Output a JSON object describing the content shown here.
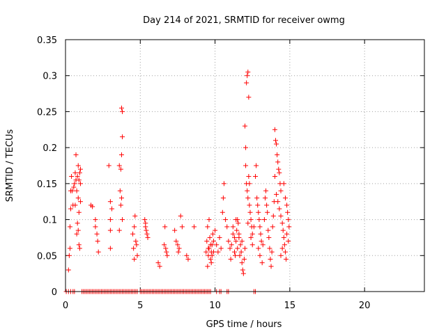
{
  "chart_data": {
    "type": "scatter",
    "title": "Day 214 of 2021, SRMTID for receiver owmg",
    "xlabel": "GPS time / hours",
    "ylabel": "SRMTID / TECUs",
    "xlim": [
      0,
      24
    ],
    "ylim": [
      0,
      0.35
    ],
    "grid": true,
    "xticks": [
      0,
      5,
      10,
      15,
      20
    ],
    "yticks": [
      0,
      0.05,
      0.1,
      0.15,
      0.2,
      0.25,
      0.3,
      0.35
    ],
    "xtick_labels": [
      "0",
      "5",
      "10",
      "15",
      "20"
    ],
    "ytick_labels": [
      "0",
      "0.05",
      "0.1",
      "0.15",
      "0.2",
      "0.25",
      "0.3",
      "0.35"
    ],
    "marker": "+",
    "color": "#ff0000",
    "series": [
      {
        "name": "SRMTID",
        "points": [
          [
            0.2,
            0.03
          ],
          [
            0.25,
            0.05
          ],
          [
            0.3,
            0.06
          ],
          [
            0.3,
            0.09
          ],
          [
            0.35,
            0.115
          ],
          [
            0.35,
            0.14
          ],
          [
            0.4,
            0.16
          ],
          [
            0.45,
            0.14
          ],
          [
            0.5,
            0.12
          ],
          [
            0.55,
            0.145
          ],
          [
            0.6,
            0.15
          ],
          [
            0.65,
            0.165
          ],
          [
            0.7,
            0.155
          ],
          [
            0.7,
            0.19
          ],
          [
            0.75,
            0.14
          ],
          [
            0.8,
            0.16
          ],
          [
            0.85,
            0.175
          ],
          [
            0.85,
            0.13
          ],
          [
            0.9,
            0.155
          ],
          [
            0.9,
            0.11
          ],
          [
            0.95,
            0.165
          ],
          [
            1.0,
            0.15
          ],
          [
            1.0,
            0.125
          ],
          [
            0.8,
            0.095
          ],
          [
            0.85,
            0.085
          ],
          [
            0.9,
            0.065
          ],
          [
            0.95,
            0.06
          ],
          [
            0.75,
            0.08
          ],
          [
            1.0,
            0.17
          ],
          [
            0.65,
            0.12
          ],
          [
            1.7,
            0.12
          ],
          [
            1.8,
            0.118
          ],
          [
            2.0,
            0.1
          ],
          [
            2.1,
            0.08
          ],
          [
            2.15,
            0.07
          ],
          [
            2.2,
            0.055
          ],
          [
            2.0,
            0.09
          ],
          [
            2.9,
            0.175
          ],
          [
            3.0,
            0.125
          ],
          [
            3.0,
            0.1
          ],
          [
            3.0,
            0.085
          ],
          [
            3.0,
            0.06
          ],
          [
            3.1,
            0.115
          ],
          [
            3.6,
            0.175
          ],
          [
            3.65,
            0.14
          ],
          [
            3.7,
            0.17
          ],
          [
            3.75,
            0.255
          ],
          [
            3.8,
            0.25
          ],
          [
            3.8,
            0.215
          ],
          [
            3.75,
            0.19
          ],
          [
            3.7,
            0.12
          ],
          [
            3.8,
            0.1
          ],
          [
            3.6,
            0.085
          ],
          [
            3.75,
            0.13
          ],
          [
            4.5,
            0.08
          ],
          [
            4.55,
            0.06
          ],
          [
            4.6,
            0.09
          ],
          [
            4.65,
            0.105
          ],
          [
            4.7,
            0.07
          ],
          [
            4.75,
            0.065
          ],
          [
            4.8,
            0.05
          ],
          [
            4.6,
            0.045
          ],
          [
            5.3,
            0.1
          ],
          [
            5.35,
            0.09
          ],
          [
            5.4,
            0.085
          ],
          [
            5.45,
            0.08
          ],
          [
            5.5,
            0.075
          ],
          [
            5.35,
            0.095
          ],
          [
            6.2,
            0.04
          ],
          [
            6.3,
            0.035
          ],
          [
            6.6,
            0.065
          ],
          [
            6.7,
            0.06
          ],
          [
            6.75,
            0.055
          ],
          [
            6.8,
            0.05
          ],
          [
            6.65,
            0.09
          ],
          [
            7.3,
            0.085
          ],
          [
            7.4,
            0.07
          ],
          [
            7.5,
            0.065
          ],
          [
            7.6,
            0.06
          ],
          [
            7.7,
            0.105
          ],
          [
            7.8,
            0.09
          ],
          [
            7.55,
            0.055
          ],
          [
            8.1,
            0.05
          ],
          [
            8.2,
            0.045
          ],
          [
            8.6,
            0.09
          ],
          [
            9.4,
            0.055
          ],
          [
            9.45,
            0.07
          ],
          [
            9.5,
            0.09
          ],
          [
            9.55,
            0.05
          ],
          [
            9.6,
            0.06
          ],
          [
            9.65,
            0.075
          ],
          [
            9.7,
            0.045
          ],
          [
            9.75,
            0.04
          ],
          [
            9.8,
            0.065
          ],
          [
            9.85,
            0.08
          ],
          [
            9.9,
            0.055
          ],
          [
            9.5,
            0.035
          ],
          [
            9.6,
            0.1
          ],
          [
            9.7,
            0.065
          ],
          [
            9.8,
            0.05
          ],
          [
            9.9,
            0.07
          ],
          [
            9.55,
            0.06
          ],
          [
            9.75,
            0.055
          ],
          [
            10.0,
            0.085
          ],
          [
            10.1,
            0.065
          ],
          [
            10.2,
            0.055
          ],
          [
            10.3,
            0.075
          ],
          [
            10.4,
            0.06
          ],
          [
            10.5,
            0.11
          ],
          [
            10.55,
            0.13
          ],
          [
            10.6,
            0.15
          ],
          [
            10.7,
            0.1
          ],
          [
            10.8,
            0.09
          ],
          [
            10.9,
            0.07
          ],
          [
            11.0,
            0.06
          ],
          [
            11.05,
            0.045
          ],
          [
            11.1,
            0.065
          ],
          [
            11.2,
            0.08
          ],
          [
            11.3,
            0.055
          ],
          [
            11.35,
            0.05
          ],
          [
            11.4,
            0.07
          ],
          [
            11.45,
            0.085
          ],
          [
            11.5,
            0.06
          ],
          [
            11.55,
            0.095
          ],
          [
            11.6,
            0.075
          ],
          [
            11.65,
            0.05
          ],
          [
            11.7,
            0.065
          ],
          [
            11.75,
            0.055
          ],
          [
            11.8,
            0.04
          ],
          [
            11.85,
            0.03
          ],
          [
            11.9,
            0.025
          ],
          [
            11.95,
            0.045
          ],
          [
            12.0,
            0.06
          ],
          [
            11.4,
            0.1
          ],
          [
            11.2,
            0.09
          ],
          [
            11.6,
            0.08
          ],
          [
            11.8,
            0.07
          ],
          [
            11.3,
            0.075
          ],
          [
            11.5,
            0.1
          ],
          [
            12.0,
            0.23
          ],
          [
            12.05,
            0.2
          ],
          [
            12.1,
            0.29
          ],
          [
            12.15,
            0.3
          ],
          [
            12.2,
            0.305
          ],
          [
            12.25,
            0.27
          ],
          [
            12.1,
            0.15
          ],
          [
            12.15,
            0.14
          ],
          [
            12.2,
            0.13
          ],
          [
            12.25,
            0.16
          ],
          [
            12.3,
            0.12
          ],
          [
            12.35,
            0.11
          ],
          [
            12.4,
            0.1
          ],
          [
            12.45,
            0.09
          ],
          [
            12.5,
            0.08
          ],
          [
            12.05,
            0.175
          ],
          [
            12.3,
            0.15
          ],
          [
            12.2,
            0.095
          ],
          [
            12.4,
            0.075
          ],
          [
            12.5,
            0.065
          ],
          [
            12.6,
            0.09
          ],
          [
            12.7,
            0.16
          ],
          [
            12.75,
            0.175
          ],
          [
            12.8,
            0.13
          ],
          [
            12.85,
            0.12
          ],
          [
            12.9,
            0.11
          ],
          [
            12.95,
            0.1
          ],
          [
            13.0,
            0.09
          ],
          [
            13.05,
            0.08
          ],
          [
            13.1,
            0.07
          ],
          [
            12.9,
            0.06
          ],
          [
            13.0,
            0.05
          ],
          [
            13.15,
            0.04
          ],
          [
            13.2,
            0.065
          ],
          [
            13.3,
            0.1
          ],
          [
            13.35,
            0.13
          ],
          [
            13.4,
            0.14
          ],
          [
            13.45,
            0.12
          ],
          [
            13.5,
            0.11
          ],
          [
            13.55,
            0.085
          ],
          [
            13.6,
            0.075
          ],
          [
            13.65,
            0.06
          ],
          [
            13.7,
            0.045
          ],
          [
            13.75,
            0.035
          ],
          [
            13.8,
            0.055
          ],
          [
            13.85,
            0.09
          ],
          [
            13.9,
            0.105
          ],
          [
            13.95,
            0.125
          ],
          [
            14.0,
            0.225
          ],
          [
            14.05,
            0.21
          ],
          [
            14.1,
            0.205
          ],
          [
            14.15,
            0.19
          ],
          [
            14.2,
            0.18
          ],
          [
            14.25,
            0.17
          ],
          [
            14.3,
            0.165
          ],
          [
            14.35,
            0.15
          ],
          [
            14.4,
            0.14
          ],
          [
            14.0,
            0.16
          ],
          [
            14.1,
            0.135
          ],
          [
            14.2,
            0.125
          ],
          [
            14.3,
            0.115
          ],
          [
            14.4,
            0.105
          ],
          [
            14.5,
            0.095
          ],
          [
            14.55,
            0.085
          ],
          [
            14.6,
            0.075
          ],
          [
            14.65,
            0.065
          ],
          [
            14.7,
            0.055
          ],
          [
            14.75,
            0.045
          ],
          [
            14.8,
            0.12
          ],
          [
            14.85,
            0.11
          ],
          [
            14.9,
            0.1
          ],
          [
            14.95,
            0.09
          ],
          [
            14.6,
            0.15
          ],
          [
            14.7,
            0.13
          ],
          [
            14.8,
            0.08
          ],
          [
            14.9,
            0.07
          ],
          [
            14.5,
            0.06
          ],
          [
            14.4,
            0.05
          ]
        ]
      }
    ],
    "zero_points": [
      0.05,
      0.2,
      0.35,
      0.5,
      0.6,
      1.1,
      1.2,
      1.3,
      1.4,
      1.5,
      1.6,
      1.7,
      1.8,
      1.9,
      2.0,
      2.1,
      2.2,
      2.3,
      2.4,
      2.5,
      2.6,
      2.7,
      2.8,
      2.9,
      3.0,
      3.1,
      3.2,
      3.3,
      3.4,
      3.5,
      3.6,
      3.7,
      3.8,
      3.9,
      4.0,
      4.1,
      4.2,
      4.3,
      4.4,
      4.5,
      4.6,
      4.7,
      4.8,
      5.0,
      5.1,
      5.2,
      5.3,
      5.4,
      5.5,
      5.6,
      5.7,
      5.8,
      5.9,
      6.0,
      6.1,
      6.2,
      6.3,
      6.4,
      6.5,
      6.6,
      6.7,
      6.8,
      6.9,
      7.0,
      7.1,
      7.2,
      7.3,
      7.4,
      7.5,
      7.6,
      7.7,
      7.8,
      7.9,
      8.0,
      8.1,
      8.2,
      8.3,
      8.4,
      8.5,
      8.6,
      8.7,
      8.8,
      8.9,
      9.0,
      9.1,
      9.2,
      9.3,
      9.4,
      9.5,
      9.6,
      9.7,
      10.1,
      10.3,
      10.4,
      10.8,
      10.9,
      12.6,
      12.7
    ]
  }
}
